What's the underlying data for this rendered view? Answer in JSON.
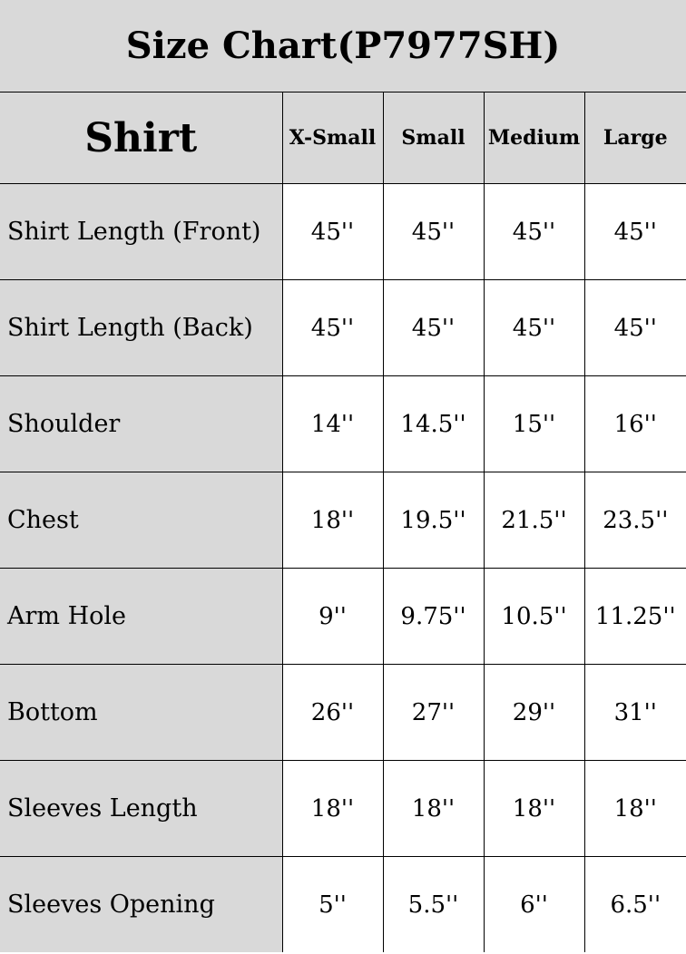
{
  "title": "Size Chart(P7977SH)",
  "header": {
    "section": "Shirt",
    "sizes": [
      "X-Small",
      "Small",
      "Medium",
      "Large"
    ]
  },
  "rows": [
    {
      "label": "Shirt Length (Front)",
      "values": [
        "45''",
        "45''",
        "45''",
        "45''"
      ]
    },
    {
      "label": "Shirt Length (Back)",
      "values": [
        "45''",
        "45''",
        "45''",
        "45''"
      ]
    },
    {
      "label": "Shoulder",
      "values": [
        "14''",
        "14.5''",
        "15''",
        "16''"
      ]
    },
    {
      "label": "Chest",
      "values": [
        "18''",
        "19.5''",
        "21.5''",
        "23.5''"
      ]
    },
    {
      "label": "Arm Hole",
      "values": [
        "9''",
        "9.75''",
        "10.5''",
        "11.25''"
      ]
    },
    {
      "label": "Bottom",
      "values": [
        "26''",
        "27''",
        "29''",
        "31''"
      ]
    },
    {
      "label": "Sleeves Length",
      "values": [
        "18''",
        "18''",
        "18''",
        "18''"
      ]
    },
    {
      "label": "Sleeves Opening",
      "values": [
        "5''",
        "5.5''",
        "6''",
        "6.5''"
      ]
    }
  ],
  "colors": {
    "header_bg": "#d9d9d9",
    "cell_bg": "#ffffff",
    "border": "#000000"
  }
}
